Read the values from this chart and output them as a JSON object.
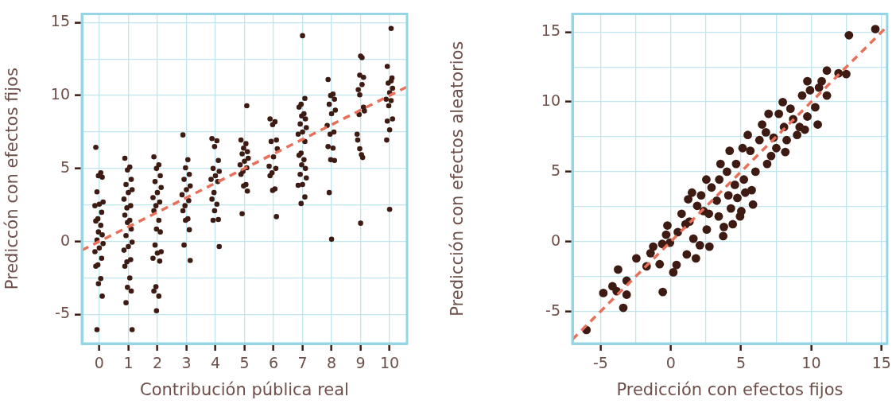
{
  "chart_data": [
    {
      "type": "scatter",
      "xlabel": "Contribución pública real",
      "ylabel": "Prediccón con efectos fijos",
      "xlim": [
        -0.6,
        10.6
      ],
      "ylim": [
        -7,
        15.6
      ],
      "xticks": [
        0,
        1,
        2,
        3,
        4,
        5,
        6,
        7,
        8,
        9,
        10
      ],
      "yticks": [
        -5,
        {
          "value": -2.5,
          "label": null
        },
        0,
        {
          "value": 2.5,
          "label": null
        },
        5,
        {
          "value": 7.5,
          "label": null
        },
        10,
        {
          "value": 12.5,
          "label": null
        },
        15
      ],
      "grid": true,
      "marker": "circle",
      "legend": false,
      "series": [
        {
          "color": "#3d1a12",
          "x": [
            -0.12,
            0.05,
            -0.03,
            0.1,
            -0.08,
            0.13,
            0,
            -0.15,
            0.08,
            -0.05,
            -0.12,
            0.05,
            -0.03,
            0.1,
            -0.08,
            0.13,
            0,
            -0.15,
            0.08,
            -0.05,
            -0.12,
            0.05,
            -0.03,
            0.1,
            -0.08,
            0.88,
            1.05,
            0.97,
            1.1,
            0.92,
            1.13,
            1,
            0.85,
            1.08,
            0.95,
            0.88,
            1.05,
            0.97,
            1.1,
            0.92,
            1.13,
            1,
            0.85,
            1.08,
            0.95,
            0.88,
            1.05,
            0.97,
            1.1,
            0.92,
            1.13,
            1.88,
            2.05,
            1.97,
            2.1,
            1.92,
            2.13,
            2,
            1.85,
            2.08,
            1.95,
            1.88,
            2.05,
            1.97,
            2.1,
            1.92,
            2.13,
            2,
            1.85,
            2.08,
            1.95,
            1.88,
            2.05,
            1.97,
            2.88,
            3.05,
            2.97,
            3.1,
            2.92,
            3.13,
            3,
            2.85,
            3.08,
            2.95,
            2.88,
            3.05,
            2.97,
            3.1,
            2.92,
            3.13,
            3.88,
            4.05,
            3.97,
            4.1,
            3.92,
            4.13,
            4,
            3.85,
            4.08,
            3.95,
            3.88,
            4.05,
            3.97,
            4.1,
            3.92,
            4.13,
            5.08,
            4.88,
            5.05,
            4.97,
            5.1,
            4.92,
            5.13,
            5,
            4.85,
            5.08,
            4.95,
            4.88,
            5.05,
            4.97,
            5.1,
            4.92,
            5.88,
            6.05,
            5.97,
            6.1,
            5.92,
            6.13,
            6,
            5.85,
            6.08,
            5.95,
            5.88,
            6.05,
            5.97,
            6.1,
            7.0,
            7.08,
            6.95,
            6.88,
            7.05,
            6.97,
            7.1,
            6.92,
            7.13,
            7,
            6.85,
            7.08,
            6.95,
            6.88,
            7.05,
            6.97,
            7.1,
            6.92,
            7.13,
            7,
            6.85,
            7.08,
            6.95,
            7.88,
            8.05,
            7.97,
            8.1,
            7.92,
            8.13,
            8,
            7.85,
            8.08,
            7.95,
            7.88,
            8.05,
            7.97,
            8.1,
            7.92,
            8.0,
            9.0,
            9.05,
            8.97,
            9.1,
            9.05,
            8.92,
            8.97,
            9.1,
            9.13,
            8.95,
            8.88,
            8.9,
            8.97,
            9.03,
            9.07,
            9.0,
            10.05,
            9.92,
            10.08,
            10.05,
            9.95,
            10.1,
            10.0,
            9.88,
            10.05,
            9.97,
            10.1,
            9.92,
            10.0,
            9.9,
            10.0
          ],
          "values": [
            6.45,
            4.7,
            4.5,
            4.4,
            3.4,
            2.7,
            2.55,
            2.45,
            2.0,
            1.55,
            1.4,
            1.1,
            0.65,
            0.45,
            0.1,
            -0.15,
            -0.45,
            -0.7,
            -1.15,
            -1.6,
            -1.7,
            -2.55,
            -2.9,
            -3.75,
            -6.05,
            5.7,
            5.1,
            4.9,
            4.25,
            3.9,
            3.55,
            3.35,
            2.9,
            2.45,
            2.3,
            1.8,
            1.45,
            1.3,
            0.85,
            0.4,
            -0.05,
            -0.35,
            -0.6,
            -1.25,
            -1.4,
            -1.7,
            -2.5,
            -3.15,
            -3.4,
            -4.2,
            -6.05,
            5.8,
            5.25,
            5.0,
            4.5,
            4.1,
            3.7,
            3.35,
            3.0,
            2.7,
            2.45,
            2.1,
            1.45,
            0.85,
            0.65,
            -0.25,
            -0.7,
            -0.8,
            -1.15,
            -1.35,
            -3.1,
            -3.4,
            -3.75,
            -4.75,
            7.3,
            5.6,
            5.05,
            4.6,
            4.25,
            3.8,
            3.55,
            3.2,
            2.8,
            2.45,
            2.1,
            1.55,
            1.45,
            0.8,
            -0.25,
            -1.3,
            7.05,
            6.9,
            6.5,
            5.55,
            5.0,
            4.8,
            4.5,
            4.25,
            4.1,
            3.35,
            2.9,
            2.55,
            2.1,
            1.5,
            1.45,
            -0.35,
            9.3,
            6.95,
            6.7,
            6.4,
            6.15,
            6.0,
            5.7,
            5.5,
            5.25,
            5.05,
            4.8,
            4.6,
            3.9,
            3.8,
            3.45,
            1.9,
            8.4,
            8.2,
            8.0,
            6.95,
            6.85,
            6.35,
            5.8,
            5.15,
            5.0,
            4.7,
            4.5,
            3.6,
            3.5,
            1.7,
            14.1,
            9.8,
            9.4,
            9.2,
            8.75,
            8.6,
            8.4,
            8.05,
            7.8,
            7.5,
            7.35,
            6.85,
            6.05,
            5.9,
            5.6,
            5.25,
            5.0,
            4.6,
            4.35,
            3.9,
            3.85,
            3.05,
            2.6,
            11.1,
            10.1,
            10.0,
            9.75,
            9.4,
            9.0,
            8.75,
            7.95,
            7.5,
            7.35,
            6.5,
            6.4,
            5.6,
            5.55,
            3.35,
            0.15,
            12.7,
            12.6,
            11.4,
            11.25,
            10.75,
            10.4,
            10.05,
            9.2,
            8.95,
            8.7,
            7.35,
            6.95,
            6.35,
            5.95,
            5.75,
            1.25,
            14.6,
            12.0,
            11.2,
            11.0,
            10.85,
            10.5,
            10.2,
            9.75,
            9.65,
            9.3,
            8.4,
            8.25,
            7.65,
            6.95,
            2.2
          ]
        },
        {
          "type": "line",
          "color": "#e8705a",
          "line_style": "dashed",
          "marker": "none",
          "x": [
            -0.6,
            10.6
          ],
          "values": [
            -0.6,
            10.6
          ]
        }
      ]
    },
    {
      "type": "scatter",
      "xlabel": "Predicción con efectos fijos",
      "ylabel": "Predicción con efectos aleatorios",
      "xlim": [
        -7,
        15.4
      ],
      "ylim": [
        -7.3,
        16.3
      ],
      "xticks": [
        -5,
        {
          "value": -2.5,
          "label": null
        },
        0,
        {
          "value": 2.5,
          "label": null
        },
        5,
        {
          "value": 7.5,
          "label": null
        },
        10,
        {
          "value": 12.5,
          "label": null
        },
        15
      ],
      "yticks": [
        -5,
        {
          "value": -2.5,
          "label": null
        },
        0,
        {
          "value": 2.5,
          "label": null
        },
        5,
        {
          "value": 7.5,
          "label": null
        },
        10,
        {
          "value": 12.5,
          "label": null
        },
        15
      ],
      "grid": true,
      "marker": "circle",
      "legend": false,
      "series": [
        {
          "color": "#3d1a12",
          "x": [
            -6.0,
            -4.8,
            -4.15,
            -3.75,
            -3.85,
            -3.38,
            -3.14,
            -3.14,
            -2.45,
            -1.72,
            -1.44,
            -1.25,
            -0.79,
            -0.57,
            -0.61,
            -0.24,
            -0.33,
            -0.06,
            0.18,
            0.41,
            0.5,
            0.77,
            1.14,
            1.05,
            1.33,
            1.24,
            1.51,
            1.61,
            1.79,
            2.07,
            1.88,
            2.16,
            2.34,
            2.53,
            2.56,
            2.75,
            2.71,
            2.9,
            3.27,
            3.45,
            3.41,
            3.54,
            3.73,
            3.78,
            4.0,
            4.1,
            4.19,
            4.28,
            4.41,
            4.56,
            4.65,
            4.74,
            4.93,
            5.02,
            5.11,
            5.2,
            5.48,
            5.3,
            5.66,
            5.76,
            5.85,
            6.03,
            6.31,
            6.5,
            6.77,
            6.86,
            6.96,
            7.14,
            7.32,
            7.51,
            7.69,
            7.97,
            8.06,
            8.15,
            8.25,
            8.52,
            8.71,
            8.99,
            9.17,
            9.35,
            9.54,
            9.72,
            9.72,
            9.91,
            10.28,
            10.46,
            10.55,
            10.74,
            11.11,
            11.11,
            11.94,
            12.49,
            12.68,
            14.56
          ],
          "values": [
            -6.33,
            -3.68,
            -3.2,
            -2.0,
            -3.55,
            -4.74,
            -3.8,
            -2.8,
            -1.2,
            -1.77,
            -0.83,
            -0.36,
            -1.62,
            -3.61,
            -0.17,
            1.15,
            0.49,
            -0.08,
            -2.2,
            -1.67,
            0.68,
            1.99,
            -0.92,
            1.24,
            1.43,
            3.03,
            3.5,
            0.21,
            -1.2,
            -0.26,
            2.56,
            3.31,
            2.18,
            4.44,
            0.86,
            -0.36,
            1.99,
            3.87,
            2.93,
            4.44,
            1.8,
            5.56,
            0.39,
            1.05,
            5.0,
            3.31,
            6.5,
            2.37,
            1.24,
            4.06,
            5.56,
            3.12,
            1.8,
            2.18,
            6.69,
            4.44,
            7.63,
            3.5,
            6.5,
            3.68,
            2.65,
            5.0,
            7.26,
            8.38,
            7.82,
            5.56,
            9.14,
            6.13,
            7.44,
            6.69,
            9.14,
            9.98,
            8.2,
            6.41,
            7.26,
            9.51,
            8.76,
            7.63,
            8.2,
            10.45,
            8.01,
            8.95,
            11.48,
            10.83,
            9.61,
            8.38,
            11.02,
            11.48,
            10.45,
            12.24,
            12.05,
            11.99,
            14.77,
            15.21
          ]
        },
        {
          "type": "line",
          "color": "#e8705a",
          "line_style": "dashed",
          "marker": "none",
          "x": [
            -7,
            15.4
          ],
          "values": [
            -7,
            15.4
          ]
        }
      ]
    }
  ]
}
